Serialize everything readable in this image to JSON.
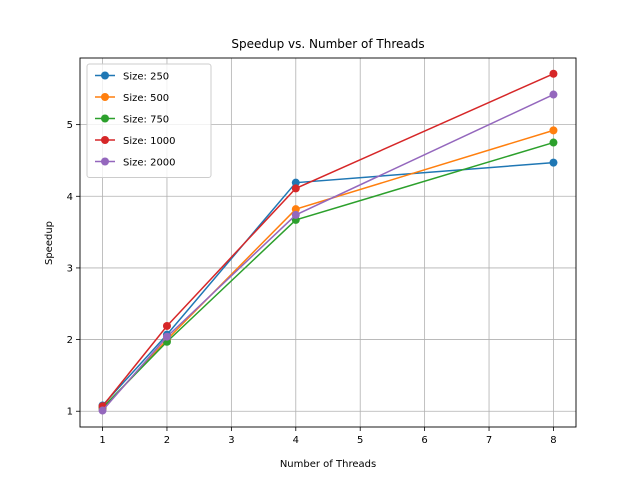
{
  "chart_data": {
    "type": "line",
    "title": "Speedup vs. Number of Threads",
    "xlabel": "Number of Threads",
    "ylabel": "Speedup",
    "x": [
      1,
      2,
      4,
      8
    ],
    "xlim": [
      0.65,
      8.35
    ],
    "ylim": [
      0.78,
      5.93
    ],
    "xticks": [
      1,
      2,
      3,
      4,
      5,
      6,
      7,
      8
    ],
    "yticks": [
      1,
      2,
      3,
      4,
      5
    ],
    "grid": true,
    "legend_position": "top-left",
    "series": [
      {
        "name": "Size: 250",
        "color": "#1f77b4",
        "values": [
          1.08,
          2.07,
          4.19,
          4.47
        ]
      },
      {
        "name": "Size: 500",
        "color": "#ff7f0e",
        "values": [
          1.03,
          2.0,
          3.82,
          4.92
        ]
      },
      {
        "name": "Size: 750",
        "color": "#2ca02c",
        "values": [
          1.05,
          1.97,
          3.67,
          4.75
        ]
      },
      {
        "name": "Size: 1000",
        "color": "#d62728",
        "values": [
          1.07,
          2.19,
          4.11,
          5.71
        ]
      },
      {
        "name": "Size: 2000",
        "color": "#9467bd",
        "values": [
          1.01,
          2.04,
          3.74,
          5.42
        ]
      }
    ]
  }
}
